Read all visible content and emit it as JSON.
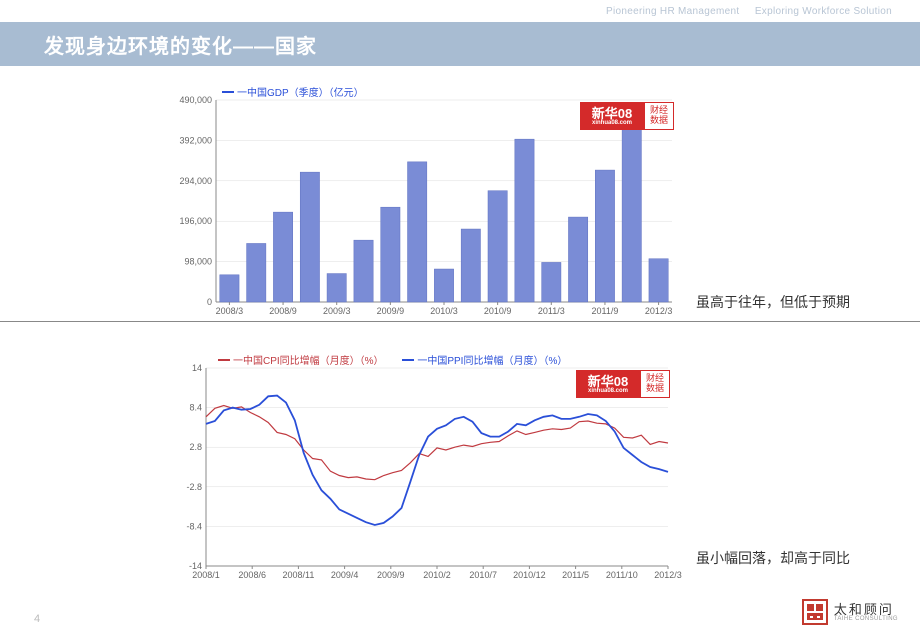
{
  "header": {
    "tagline_left": "Pioneering HR Management",
    "tagline_right": "Exploring Workforce Solution",
    "title": "发现身边环境的变化——国家"
  },
  "chart1": {
    "type": "bar",
    "legend_label": "一中国GDP（季度）（亿元）",
    "legend_color": "#2a4fd8",
    "bar_fill": "#7a8cd6",
    "bar_stroke": "#5e70c0",
    "grid_color": "#dcdcdc",
    "axis_color": "#888888",
    "background": "#ffffff",
    "ylim": [
      0,
      490000
    ],
    "yticks": [
      0,
      98000,
      196000,
      294000,
      392000,
      490000
    ],
    "ytick_labels": [
      "0",
      "98,000",
      "196,000",
      "294,000",
      "392,000",
      "490,000"
    ],
    "xlabels": [
      "2008/3",
      "2008/9",
      "2009/3",
      "2009/9",
      "2010/3",
      "2010/9",
      "2011/3",
      "2011/9",
      "2012/3"
    ],
    "values": [
      66000,
      142000,
      218000,
      315000,
      69000,
      150000,
      230000,
      340000,
      80000,
      177000,
      270000,
      395000,
      96000,
      206000,
      320000,
      470000,
      105000
    ],
    "bar_width": 0.72,
    "label_fontsize": 9,
    "stamp": {
      "brand": "新华08",
      "domain": "xinhua08.com",
      "side1": "财经",
      "side2": "数据"
    },
    "annotation": "虽高于往年，但低于预期"
  },
  "chart2": {
    "type": "line",
    "series": [
      {
        "label": "一中国CPI同比增幅（月度）（%）",
        "color": "#c03a40",
        "width": 1.2,
        "values": [
          7.1,
          8.3,
          8.7,
          8.3,
          8.5,
          7.7,
          7.1,
          6.3,
          4.9,
          4.6,
          4.0,
          2.4,
          1.2,
          1.0,
          -0.6,
          -1.2,
          -1.5,
          -1.4,
          -1.7,
          -1.8,
          -1.2,
          -0.8,
          -0.5,
          0.6,
          1.9,
          1.5,
          2.7,
          2.4,
          2.8,
          3.1,
          2.9,
          3.3,
          3.5,
          3.6,
          4.4,
          5.1,
          4.6,
          4.9,
          5.2,
          5.4,
          5.3,
          5.5,
          6.4,
          6.5,
          6.2,
          6.1,
          5.5,
          4.2,
          4.1,
          4.5,
          3.2,
          3.6,
          3.4
        ]
      },
      {
        "label": "一中国PPI同比增幅（月度）（%）",
        "color": "#2a4fd8",
        "width": 1.8,
        "values": [
          6.1,
          6.5,
          8.0,
          8.4,
          8.1,
          8.2,
          8.8,
          10.0,
          10.1,
          9.1,
          6.6,
          2.0,
          -1.1,
          -3.3,
          -4.5,
          -6.0,
          -6.6,
          -7.2,
          -7.8,
          -8.2,
          -7.9,
          -7.0,
          -5.8,
          -2.1,
          1.7,
          4.3,
          5.4,
          5.9,
          6.8,
          7.1,
          6.4,
          4.8,
          4.3,
          4.3,
          5.0,
          6.1,
          5.9,
          6.6,
          7.1,
          7.3,
          6.8,
          6.8,
          7.1,
          7.5,
          7.3,
          6.5,
          5.0,
          2.7,
          1.7,
          0.7,
          0.0,
          -0.3,
          -0.7
        ]
      }
    ],
    "grid_color": "#dcdcdc",
    "axis_color": "#888888",
    "background": "#ffffff",
    "ylim": [
      -14,
      14
    ],
    "yticks": [
      -14,
      -8.4,
      -2.8,
      2.8,
      8.4,
      14
    ],
    "ytick_labels": [
      "-14",
      "-8.4",
      "-2.8",
      "2.8",
      "8.4",
      "14"
    ],
    "xlabels": [
      "2008/1",
      "2008/6",
      "2008/11",
      "2009/4",
      "2009/9",
      "2010/2",
      "2010/7",
      "2010/12",
      "2011/5",
      "2011/10",
      "2012/3"
    ],
    "n_points": 53,
    "label_fontsize": 9,
    "stamp": {
      "brand": "新华08",
      "domain": "xinhua08.com",
      "side1": "财经",
      "side2": "数据"
    },
    "annotation": "虽小幅回落，却高于同比"
  },
  "footer": {
    "page": "4",
    "brand_cn": "太和顾问",
    "brand_en": "TAIHE CONSULTING",
    "brand_color": "#c23a2f"
  },
  "hr_y": 321
}
